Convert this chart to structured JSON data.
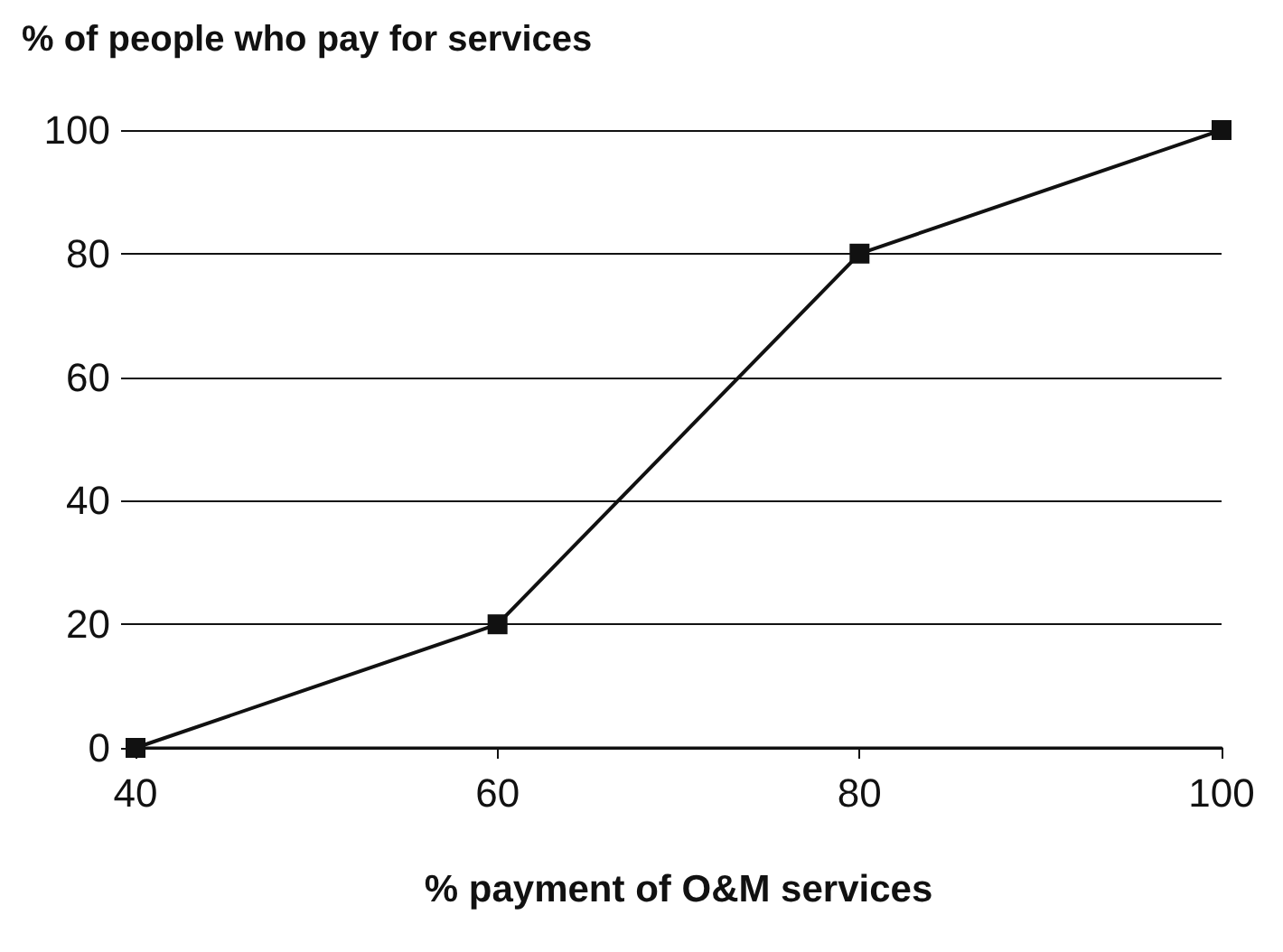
{
  "chart_data": {
    "type": "line",
    "ylabel": "% of people who pay for services",
    "xlabel": "% payment of O&M services",
    "x": [
      40,
      60,
      80,
      100
    ],
    "series": [
      {
        "color": "#111111",
        "values": [
          0,
          20,
          80,
          100
        ]
      }
    ],
    "xlim": [
      40,
      100
    ],
    "xticks": [
      40,
      60,
      80,
      100
    ],
    "ylim": [
      0,
      100
    ],
    "yticks": [
      0,
      20,
      40,
      60,
      80,
      100
    ],
    "grid": "y",
    "marker": "square",
    "line_style": "solid"
  }
}
